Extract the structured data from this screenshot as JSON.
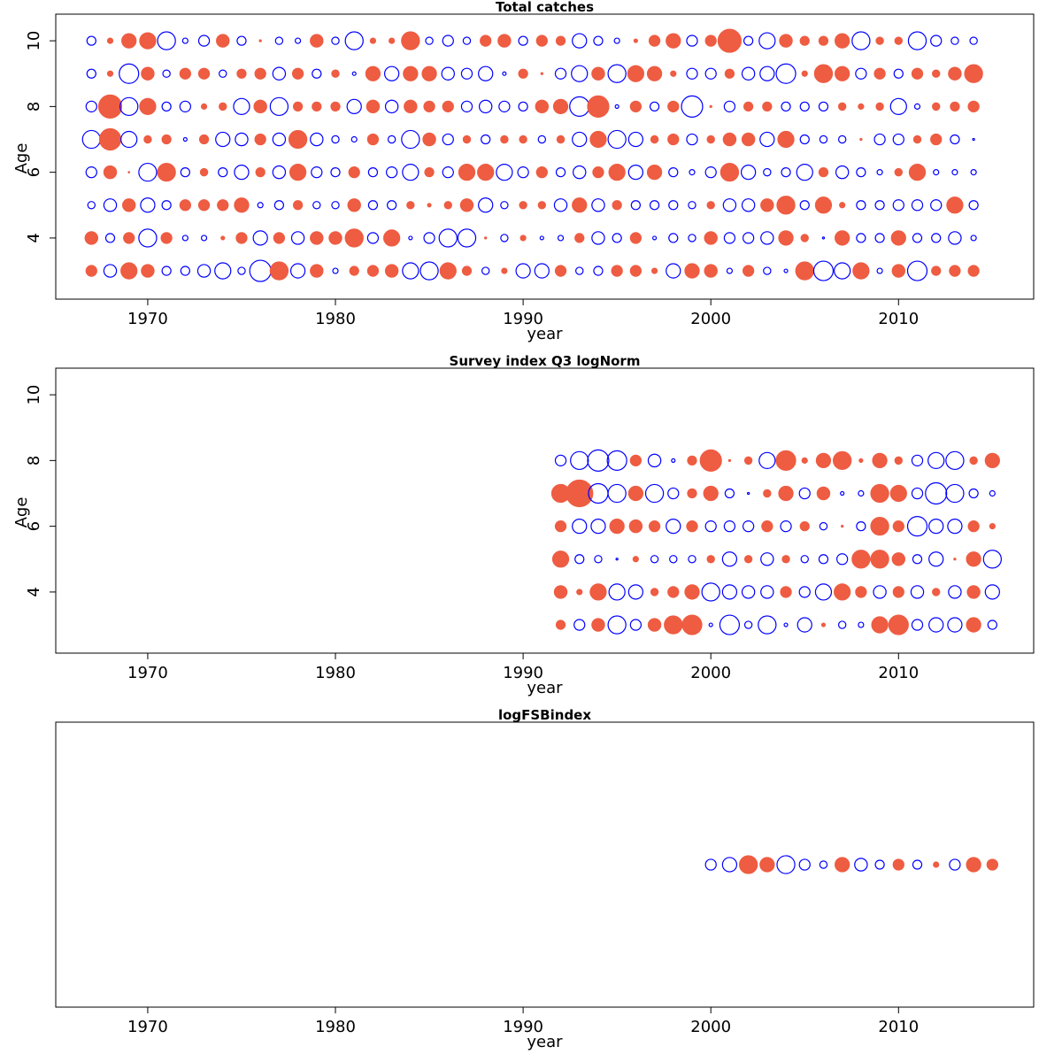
{
  "chart_data": [
    {
      "type": "bubble",
      "title": "Total catches",
      "x_label": "year",
      "y_label": "Age",
      "pos_color": "#ee5c42",
      "neg_color": "#0000ff",
      "xlim": [
        1965.1,
        2017.2
      ],
      "xticks": [
        1970,
        1980,
        1990,
        2000,
        2010
      ],
      "ylim": [
        2.14,
        10.81
      ],
      "yticks": [
        4,
        6,
        8,
        10
      ],
      "x": [
        1967,
        1968,
        1969,
        1970,
        1971,
        1972,
        1973,
        1974,
        1975,
        1976,
        1977,
        1978,
        1979,
        1980,
        1981,
        1982,
        1983,
        1984,
        1985,
        1986,
        1987,
        1988,
        1989,
        1990,
        1991,
        1992,
        1993,
        1994,
        1995,
        1996,
        1997,
        1998,
        1999,
        2000,
        2001,
        2002,
        2003,
        2004,
        2005,
        2006,
        2007,
        2008,
        2009,
        2010,
        2011,
        2012,
        2013,
        2014
      ],
      "y": [
        10,
        9,
        8,
        7,
        6,
        5,
        4,
        3
      ],
      "values": [
        [
          -0.45,
          0.16,
          1.15,
          1.45,
          -1.8,
          -0.16,
          -0.65,
          0.9,
          -0.45,
          0.02,
          -0.3,
          -0.16,
          0.9,
          -0.3,
          -1.8,
          0.16,
          0.16,
          1.8,
          -0.3,
          -0.65,
          -0.3,
          0.65,
          0.9,
          -0.45,
          0.65,
          0.45,
          -1.15,
          -0.45,
          -0.16,
          0.07,
          0.65,
          1.15,
          -0.65,
          0.65,
          3.0,
          -0.45,
          -1.45,
          0.9,
          0.45,
          0.45,
          1.15,
          -1.8,
          0.3,
          0.3,
          -1.8,
          -0.65,
          -0.3,
          -0.3
        ],
        [
          -0.45,
          0.16,
          -2.15,
          0.9,
          -0.3,
          0.65,
          0.65,
          -0.3,
          0.45,
          0.65,
          -0.9,
          0.65,
          -0.45,
          0.3,
          -0.07,
          1.15,
          -1.15,
          1.15,
          1.15,
          -0.9,
          -0.65,
          -1.15,
          -0.07,
          0.45,
          0.02,
          -0.65,
          -1.45,
          0.9,
          -1.8,
          1.45,
          1.15,
          0.16,
          -0.65,
          -0.65,
          0.45,
          -0.9,
          -1.15,
          -2.15,
          0.16,
          1.8,
          1.15,
          -0.65,
          0.65,
          -0.45,
          0.65,
          0.3,
          0.9,
          1.8
        ],
        [
          -0.65,
          3.0,
          -1.8,
          1.45,
          -0.45,
          -0.65,
          0.16,
          0.3,
          -1.45,
          0.9,
          -1.8,
          0.45,
          0.45,
          0.45,
          -1.15,
          0.9,
          -0.9,
          0.9,
          0.65,
          0.65,
          -0.65,
          -0.9,
          -0.65,
          -0.45,
          0.9,
          1.15,
          -2.15,
          2.55,
          -0.07,
          0.65,
          -0.45,
          0.65,
          -2.55,
          0.02,
          -0.65,
          0.45,
          0.45,
          -0.45,
          -0.45,
          -0.45,
          0.3,
          0.16,
          0.3,
          -1.45,
          -0.16,
          0.3,
          0.45,
          0.65
        ],
        [
          -1.8,
          2.55,
          -1.45,
          0.3,
          0.45,
          -0.07,
          0.45,
          -1.15,
          -0.9,
          0.65,
          -0.9,
          1.8,
          -0.9,
          -0.3,
          -0.16,
          0.65,
          -0.3,
          -1.8,
          0.9,
          -0.65,
          0.3,
          -0.45,
          0.3,
          0.3,
          -0.3,
          0.3,
          -1.15,
          1.45,
          -1.8,
          -1.15,
          0.3,
          0.65,
          -0.65,
          0.3,
          0.9,
          0.9,
          -1.15,
          1.45,
          -0.45,
          -0.3,
          -0.3,
          0.02,
          -0.65,
          -0.65,
          0.3,
          0.65,
          -0.45,
          -0.02
        ],
        [
          -0.65,
          0.9,
          0.01,
          -1.8,
          1.8,
          -0.45,
          0.3,
          -0.45,
          -1.15,
          0.45,
          -0.9,
          1.45,
          -0.65,
          -0.45,
          0.65,
          -0.45,
          -0.65,
          -1.45,
          0.45,
          -0.65,
          1.45,
          1.45,
          -1.45,
          -0.65,
          0.65,
          -0.45,
          -0.9,
          0.65,
          1.45,
          -1.15,
          1.15,
          -0.45,
          -0.16,
          -0.65,
          1.8,
          -1.15,
          -0.3,
          -0.45,
          -1.45,
          0.45,
          -0.9,
          -0.45,
          -0.16,
          0.3,
          1.45,
          -0.16,
          -0.16,
          -0.16
        ],
        [
          -0.3,
          -0.9,
          0.9,
          -1.15,
          -0.45,
          0.65,
          0.65,
          0.65,
          1.15,
          -0.16,
          -0.45,
          0.45,
          -0.3,
          -0.3,
          0.9,
          -0.45,
          -0.45,
          0.3,
          0.07,
          0.3,
          0.9,
          -1.15,
          -0.3,
          0.3,
          0.3,
          -0.9,
          1.15,
          -0.9,
          0.45,
          -0.45,
          -0.45,
          -0.45,
          -0.3,
          0.3,
          -0.9,
          -0.9,
          0.9,
          1.8,
          -0.45,
          1.45,
          0.16,
          -0.45,
          -0.45,
          -0.65,
          -0.65,
          -0.65,
          1.45,
          -0.45
        ],
        [
          0.9,
          -0.45,
          0.65,
          -1.8,
          0.65,
          -0.16,
          -0.16,
          0.07,
          0.65,
          -1.15,
          0.65,
          -0.9,
          0.9,
          0.9,
          1.8,
          -0.65,
          1.45,
          -0.07,
          -0.65,
          -1.8,
          -1.8,
          0.02,
          -0.3,
          0.16,
          -0.07,
          -0.16,
          0.45,
          -0.9,
          -0.45,
          0.65,
          -0.07,
          -0.45,
          -0.3,
          0.9,
          -0.65,
          -0.65,
          -0.9,
          1.15,
          0.3,
          -0.02,
          1.15,
          -0.45,
          -0.45,
          1.15,
          -0.45,
          -0.45,
          -0.9,
          -0.16
        ],
        [
          0.65,
          -0.9,
          1.45,
          0.9,
          -0.45,
          -0.45,
          -0.9,
          -1.45,
          -0.3,
          -2.55,
          1.8,
          -1.15,
          0.9,
          -0.16,
          0.45,
          0.65,
          0.9,
          -1.45,
          -1.8,
          1.45,
          0.45,
          -0.3,
          0.16,
          -1.15,
          -1.15,
          0.65,
          -0.3,
          -0.45,
          0.65,
          0.65,
          0.16,
          -1.15,
          1.15,
          0.9,
          -0.16,
          0.65,
          -0.3,
          -0.07,
          1.8,
          -2.15,
          -1.45,
          1.45,
          -0.16,
          0.9,
          -2.15,
          0.45,
          0.65,
          0.65
        ]
      ]
    },
    {
      "type": "bubble",
      "title": "Survey index Q3 logNorm",
      "x_label": "year",
      "y_label": "Age",
      "pos_color": "#ee5c42",
      "neg_color": "#0000ff",
      "xlim": [
        1965.1,
        2017.2
      ],
      "xticks": [
        1970,
        1980,
        1990,
        2000,
        2010
      ],
      "ylim": [
        2.14,
        10.81
      ],
      "yticks": [
        4,
        6,
        8,
        10
      ],
      "x": [
        1992,
        1993,
        1994,
        1995,
        1996,
        1997,
        1998,
        1999,
        2000,
        2001,
        2002,
        2003,
        2004,
        2005,
        2006,
        2007,
        2008,
        2009,
        2010,
        2011,
        2012,
        2013,
        2014,
        2015
      ],
      "y": [
        8,
        7,
        6,
        5,
        4,
        3
      ],
      "values": [
        [
          -0.65,
          -1.8,
          -2.55,
          -2.15,
          0.65,
          -0.9,
          -0.07,
          0.45,
          2.55,
          0.02,
          0.3,
          -1.45,
          2.15,
          0.16,
          1.15,
          1.8,
          0.07,
          1.15,
          0.3,
          -0.65,
          -1.45,
          -1.8,
          0.3,
          1.15
        ],
        [
          1.8,
          4.0,
          -2.15,
          -1.8,
          1.15,
          -1.8,
          -0.65,
          0.45,
          1.15,
          -0.45,
          -0.02,
          0.3,
          1.15,
          -0.65,
          0.9,
          -0.07,
          -0.16,
          1.8,
          1.45,
          -0.65,
          -2.55,
          -1.8,
          -0.45,
          -0.16
        ],
        [
          0.65,
          -1.15,
          -1.15,
          1.15,
          0.9,
          0.65,
          -1.15,
          0.65,
          -0.65,
          -0.65,
          -0.65,
          0.65,
          -0.65,
          0.45,
          -0.3,
          0.02,
          -0.45,
          1.8,
          0.65,
          -2.15,
          -1.15,
          -1.15,
          0.65,
          0.16
        ],
        [
          1.45,
          -0.45,
          -0.3,
          -0.02,
          0.16,
          -0.3,
          -0.3,
          -0.3,
          0.3,
          -1.15,
          0.3,
          -0.9,
          0.3,
          -0.3,
          -0.45,
          -0.65,
          1.8,
          1.8,
          0.9,
          -0.45,
          -1.15,
          0.02,
          1.15,
          -1.8
        ],
        [
          0.9,
          0.16,
          1.45,
          -1.45,
          -1.15,
          0.3,
          0.65,
          1.15,
          -1.8,
          -1.15,
          -0.9,
          -0.9,
          0.65,
          -0.65,
          -1.45,
          1.45,
          0.65,
          -0.9,
          0.65,
          -0.9,
          0.3,
          -0.9,
          0.9,
          -1.15
        ],
        [
          0.45,
          -0.65,
          0.9,
          -1.8,
          -0.65,
          0.9,
          1.8,
          2.15,
          -0.07,
          -2.15,
          -0.3,
          -1.8,
          -0.07,
          -1.15,
          0.07,
          -0.3,
          -0.16,
          1.45,
          2.15,
          -0.65,
          -1.15,
          -1.15,
          1.15,
          -0.45
        ]
      ]
    },
    {
      "type": "bubble",
      "title": "logFSBindex",
      "x_label": "year",
      "pos_color": "#ee5c42",
      "neg_color": "#0000ff",
      "xlim": [
        1965.1,
        2017.2
      ],
      "xticks": [
        1970,
        1980,
        1990,
        2000,
        2010
      ],
      "x": [
        2000,
        2001,
        2002,
        2003,
        2004,
        2005,
        2006,
        2007,
        2008,
        2009,
        2010,
        2011,
        2012,
        2013,
        2014,
        2015
      ],
      "values": [
        -0.65,
        -1.15,
        1.8,
        1.15,
        -1.8,
        -0.65,
        -0.3,
        1.15,
        -0.9,
        -0.45,
        0.65,
        -0.45,
        0.16,
        -0.65,
        1.15,
        0.65
      ]
    }
  ]
}
